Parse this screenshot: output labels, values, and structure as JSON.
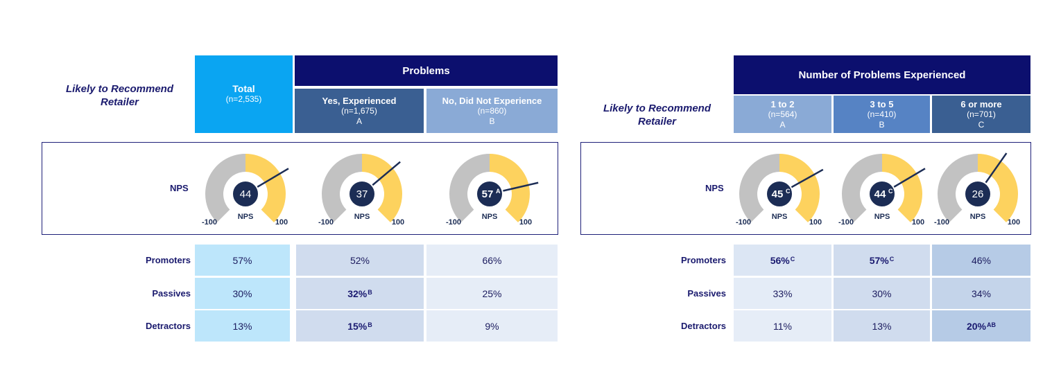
{
  "left": {
    "side_title": "Likely to Recommend Retailer",
    "total": {
      "title": "Total",
      "n": "(n=2,535)"
    },
    "group_title": "Problems",
    "columns": [
      {
        "title": "Yes, Experienced",
        "n": "(n=1,675)",
        "letter": "A"
      },
      {
        "title": "No, Did Not Experience",
        "n": "(n=860)",
        "letter": "B"
      }
    ]
  },
  "right": {
    "side_title": "Likely to Recommend Retailer",
    "group_title": "Number of Problems Experienced",
    "columns": [
      {
        "title": "1 to 2",
        "n": "(n=564)",
        "letter": "A"
      },
      {
        "title": "3 to 5",
        "n": "(n=410)",
        "letter": "B"
      },
      {
        "title": "6 or more",
        "n": "(n=701)",
        "letter": "C"
      }
    ]
  },
  "gauge_text": {
    "nps_row_label": "NPS",
    "inner_label": "NPS",
    "min_label": "-100",
    "max_label": "100"
  },
  "row_labels": [
    "Promoters",
    "Passives",
    "Detractors"
  ],
  "colors": {
    "gauge_gray": "#c2c2c2",
    "gauge_yellow": "#fdd25e",
    "gauge_center": "#1c2d55",
    "header_dark": "#0c0f6e",
    "total_header": "#0aa5f2"
  },
  "chart_data": [
    {
      "type": "table",
      "title": "Problems",
      "categories": [
        "Total",
        "Yes, Experienced",
        "No, Did Not Experience"
      ],
      "nps": [
        {
          "value": 44,
          "display": "44",
          "sup": "",
          "bold": false
        },
        {
          "value": 37,
          "display": "37",
          "sup": "",
          "bold": false
        },
        {
          "value": 57,
          "display": "57",
          "sup": "A",
          "bold": true
        }
      ],
      "rows": [
        {
          "name": "Promoters",
          "cells": [
            {
              "value": "57%",
              "sup": "",
              "bold": false
            },
            {
              "value": "52%",
              "sup": "",
              "bold": false
            },
            {
              "value": "66%",
              "sup": "",
              "bold": false
            }
          ]
        },
        {
          "name": "Passives",
          "cells": [
            {
              "value": "30%",
              "sup": "",
              "bold": false
            },
            {
              "value": "32%",
              "sup": "B",
              "bold": true
            },
            {
              "value": "25%",
              "sup": "",
              "bold": false
            }
          ]
        },
        {
          "name": "Detractors",
          "cells": [
            {
              "value": "13%",
              "sup": "",
              "bold": false
            },
            {
              "value": "15%",
              "sup": "B",
              "bold": true
            },
            {
              "value": "9%",
              "sup": "",
              "bold": false
            }
          ]
        }
      ]
    },
    {
      "type": "table",
      "title": "Number of Problems Experienced",
      "categories": [
        "1 to 2",
        "3 to 5",
        "6 or more"
      ],
      "nps": [
        {
          "value": 45,
          "display": "45",
          "sup": "C",
          "bold": true
        },
        {
          "value": 44,
          "display": "44",
          "sup": "C",
          "bold": true
        },
        {
          "value": 26,
          "display": "26",
          "sup": "",
          "bold": false
        }
      ],
      "rows": [
        {
          "name": "Promoters",
          "cells": [
            {
              "value": "56%",
              "sup": "C",
              "bold": true
            },
            {
              "value": "57%",
              "sup": "C",
              "bold": true
            },
            {
              "value": "46%",
              "sup": "",
              "bold": false
            }
          ]
        },
        {
          "name": "Passives",
          "cells": [
            {
              "value": "33%",
              "sup": "",
              "bold": false
            },
            {
              "value": "30%",
              "sup": "",
              "bold": false
            },
            {
              "value": "34%",
              "sup": "",
              "bold": false
            }
          ]
        },
        {
          "name": "Detractors",
          "cells": [
            {
              "value": "11%",
              "sup": "",
              "bold": false
            },
            {
              "value": "13%",
              "sup": "",
              "bold": false
            },
            {
              "value": "20%",
              "sup": "AB",
              "bold": true
            }
          ]
        }
      ]
    }
  ]
}
